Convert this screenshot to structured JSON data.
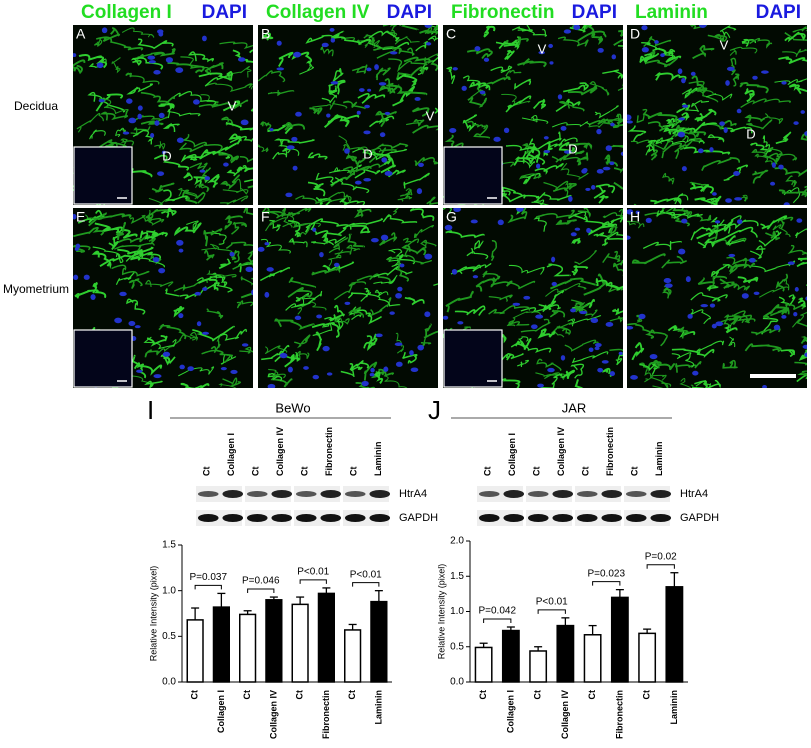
{
  "headers": [
    {
      "stain": "Collagen I",
      "dapi": "DAPI"
    },
    {
      "stain": "Collagen IV",
      "dapi": "DAPI"
    },
    {
      "stain": "Fibronectin",
      "dapi": "DAPI"
    },
    {
      "stain": "Laminin",
      "dapi": "DAPI"
    }
  ],
  "rows": [
    "Decidua",
    "Myometrium"
  ],
  "panels": [
    {
      "letter": "A",
      "labels": [
        "V",
        "D"
      ]
    },
    {
      "letter": "B",
      "labels": [
        "D",
        "V"
      ]
    },
    {
      "letter": "C",
      "labels": [
        "V",
        "D"
      ]
    },
    {
      "letter": "D",
      "labels": [
        "V",
        "D"
      ]
    },
    {
      "letter": "E"
    },
    {
      "letter": "F"
    },
    {
      "letter": "G"
    },
    {
      "letter": "H"
    }
  ],
  "blots": [
    {
      "letter": "I",
      "cell_line": "BeWo",
      "lanes": [
        "Ct",
        "Collagen I",
        "Ct",
        "Collagen IV",
        "Ct",
        "Fibronectin",
        "Ct",
        "Laminin"
      ],
      "proteins": [
        "HtrA4",
        "GAPDH"
      ]
    },
    {
      "letter": "J",
      "cell_line": "JAR",
      "lanes": [
        "Ct",
        "Collagen I",
        "Ct",
        "Collagen IV",
        "Ct",
        "Fibronectin",
        "Ct",
        "Laminin"
      ],
      "proteins": [
        "HtrA4",
        "GAPDH"
      ]
    }
  ],
  "chart_data": [
    {
      "type": "bar",
      "ylabel": "Relative Intensity (pixel)",
      "categories": [
        "Ct",
        "Collagen I",
        "Ct",
        "Collagen IV",
        "Ct",
        "Fibronectin",
        "Ct",
        "Laminin"
      ],
      "values": [
        0.68,
        0.82,
        0.74,
        0.9,
        0.85,
        0.97,
        0.57,
        0.88
      ],
      "errors": [
        0.13,
        0.15,
        0.04,
        0.03,
        0.08,
        0.06,
        0.06,
        0.12
      ],
      "fills": [
        "#ffffff",
        "#000000",
        "#ffffff",
        "#000000",
        "#ffffff",
        "#000000",
        "#ffffff",
        "#000000"
      ],
      "ylim": [
        0,
        1.5
      ],
      "yticks": [
        {
          "value": 0,
          "label": "0.0"
        },
        {
          "value": 0.5,
          "label": "0.5"
        },
        {
          "value": 1,
          "label": "1.0"
        },
        {
          "value": 1.5,
          "label": "1.5"
        }
      ],
      "annotations": [
        "P=0.037",
        "P=0.046",
        "P<0.01",
        "P<0.01"
      ]
    },
    {
      "type": "bar",
      "ylabel": "Relative Intensity (pixel)",
      "categories": [
        "Ct",
        "Collagen I",
        "Ct",
        "Collagen IV",
        "Ct",
        "Fibronectin",
        "Ct",
        "Laminin"
      ],
      "values": [
        0.49,
        0.73,
        0.44,
        0.8,
        0.67,
        1.2,
        0.69,
        1.35
      ],
      "errors": [
        0.06,
        0.05,
        0.06,
        0.11,
        0.13,
        0.11,
        0.06,
        0.2
      ],
      "fills": [
        "#ffffff",
        "#000000",
        "#ffffff",
        "#000000",
        "#ffffff",
        "#000000",
        "#ffffff",
        "#000000"
      ],
      "ylim": [
        0,
        2
      ],
      "yticks": [
        {
          "value": 0,
          "label": "0.0"
        },
        {
          "value": 0.5,
          "label": "0.5"
        },
        {
          "value": 1,
          "label": "1.0"
        },
        {
          "value": 1.5,
          "label": "1.5"
        },
        {
          "value": 2,
          "label": "2.0"
        }
      ],
      "annotations": [
        "P=0.042",
        "P<0.01",
        "P=0.023",
        "P=0.02"
      ]
    }
  ]
}
